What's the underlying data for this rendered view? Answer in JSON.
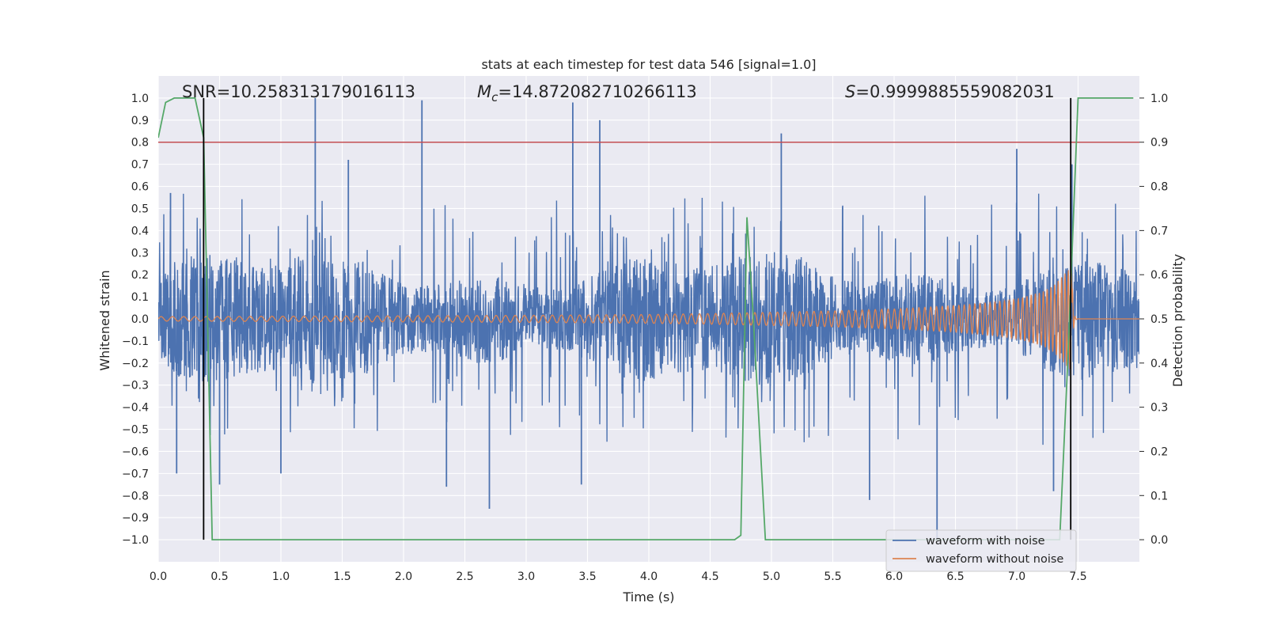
{
  "chart_data": {
    "type": "line",
    "title": "stats at each timestep for test data 546 [signal=1.0]",
    "xlabel": "Time (s)",
    "ylabel": "Whitened strain",
    "ylabel_right": "Detection probability",
    "xlim": [
      0.0,
      8.0
    ],
    "ylim": [
      -1.1,
      1.1
    ],
    "ylim_right": [
      -0.05,
      1.05
    ],
    "x_ticks": [
      "0.0",
      "0.5",
      "1.0",
      "1.5",
      "2.0",
      "2.5",
      "3.0",
      "3.5",
      "4.0",
      "4.5",
      "5.0",
      "5.5",
      "6.0",
      "6.5",
      "7.0",
      "7.5"
    ],
    "y_ticks": [
      "1.0",
      "0.9",
      "0.8",
      "0.7",
      "0.6",
      "0.5",
      "0.4",
      "0.3",
      "0.2",
      "0.1",
      "0.0",
      "−0.1",
      "−0.2",
      "−0.3",
      "−0.4",
      "−0.5",
      "−0.6",
      "−0.7",
      "−0.8",
      "−0.9",
      "−1.0"
    ],
    "y_ticks_right": [
      "1.0",
      "0.9",
      "0.8",
      "0.7",
      "0.6",
      "0.5",
      "0.4",
      "0.3",
      "0.2",
      "0.1",
      "0.0"
    ],
    "grid": true,
    "legend_position": "bottom-right",
    "annotations": {
      "snr": "SNR=10.258313179016113",
      "mc_symbol": "M",
      "mc_sub": "c",
      "mc_value": "=14.872082710266113",
      "s_symbol": "S",
      "s_value": "=0.9999885559082031"
    },
    "series": [
      {
        "name": "waveform with noise",
        "color": "#4c72b0",
        "description": "noisy whitened strain, roughly symmetric about zero with envelope ~0.3-0.6",
        "notable_peaks": [
          [
            0.1,
            0.57
          ],
          [
            1.28,
            1.0
          ],
          [
            1.55,
            0.72
          ],
          [
            2.15,
            0.99
          ],
          [
            3.38,
            0.98
          ],
          [
            3.6,
            0.9
          ],
          [
            5.08,
            0.84
          ],
          [
            7.0,
            0.77
          ],
          [
            7.45,
            0.7
          ]
        ],
        "notable_troughs": [
          [
            0.15,
            -0.7
          ],
          [
            0.5,
            -0.75
          ],
          [
            1.0,
            -0.7
          ],
          [
            2.35,
            -0.76
          ],
          [
            2.7,
            -0.86
          ],
          [
            3.45,
            -0.75
          ],
          [
            5.8,
            -0.82
          ],
          [
            6.35,
            -1.0
          ],
          [
            7.3,
            -0.78
          ]
        ]
      },
      {
        "name": "waveform without noise",
        "color": "#dd8452",
        "description": "inspiral chirp, amplitude grows toward merger near t=7.45 s",
        "x": [
          0.0,
          1.0,
          2.0,
          3.0,
          4.0,
          4.5,
          5.0,
          5.5,
          6.0,
          6.5,
          6.8,
          7.0,
          7.2,
          7.3,
          7.4,
          7.45,
          7.5,
          8.0
        ],
        "amplitude": [
          0.01,
          0.012,
          0.014,
          0.016,
          0.02,
          0.024,
          0.03,
          0.036,
          0.045,
          0.06,
          0.075,
          0.09,
          0.12,
          0.15,
          0.21,
          0.24,
          0.0,
          0.0
        ]
      },
      {
        "name": "",
        "color": "#55a868",
        "axis": "right",
        "x": [
          0.0,
          0.06,
          0.13,
          0.3,
          0.37,
          0.44,
          4.7,
          4.75,
          4.8,
          4.85,
          4.95,
          7.35,
          7.42,
          7.5,
          7.95
        ],
        "values": [
          0.91,
          0.99,
          1.0,
          1.0,
          0.91,
          0.0,
          0.0,
          0.01,
          0.73,
          0.51,
          0.0,
          0.0,
          0.43,
          1.0,
          1.0
        ]
      }
    ],
    "reference_lines": {
      "horizontal_right_axis": {
        "value": 0.9,
        "color": "#c44e52"
      },
      "vertical_x": [
        0.37,
        7.44
      ],
      "vertical_color": "#000000"
    }
  }
}
